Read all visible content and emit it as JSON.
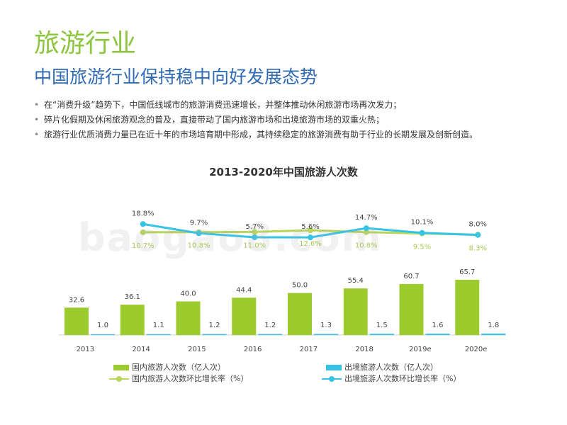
{
  "header": {
    "section_title": "旅游行业",
    "subtitle": "中国旅游行业保持稳中向好发展态势"
  },
  "bullets": [
    "在“消费升级”趋势下，中国低线城市的旅游消费迅速增长，并整体推动休闲旅游市场再次发力；",
    "碎片化假期及休闲旅游观念的普及，直接带动了国内旅游市场和出境旅游市场的双重火热；",
    "旅游行业优质消费力量已在近十年的市场培育期中形成，其持续稳定的旅游消费有助于行业的长期发展及创新创造。"
  ],
  "bullet_symbol": "•",
  "watermark": "baogao8.com",
  "colors": {
    "title_green": "#8cc63f",
    "subtitle_blue": "#2f6bb3",
    "domestic": "#9ccb2e",
    "outbound": "#35c3e6"
  },
  "chart_data": {
    "type": "bar",
    "title": "2013-2020年中国旅游人次数",
    "categories": [
      "2013",
      "2014",
      "2015",
      "2016",
      "2017",
      "2018",
      "2019e",
      "2020e"
    ],
    "series": [
      {
        "name": "国内旅游人次数（亿人次）",
        "kind": "bar",
        "color": "#9ccb2e",
        "values": [
          32.6,
          36.1,
          40.0,
          44.4,
          50.0,
          55.4,
          60.7,
          65.7
        ],
        "labels": [
          "32.6",
          "36.1",
          "40.0",
          "44.4",
          "50.0",
          "55.4",
          "60.7",
          "65.7"
        ]
      },
      {
        "name": "出境旅游人次数（亿人次）",
        "kind": "bar",
        "color": "#35c3e6",
        "values": [
          1.0,
          1.1,
          1.2,
          1.2,
          1.3,
          1.5,
          1.6,
          1.8
        ],
        "labels": [
          "1.0",
          "1.1",
          "1.2",
          "1.2",
          "1.3",
          "1.5",
          "1.6",
          "1.8"
        ]
      },
      {
        "name": "国内旅游人次数环比增长率（%）",
        "kind": "line",
        "color": "#b9d65a",
        "values": [
          null,
          10.7,
          10.8,
          11.0,
          12.6,
          10.8,
          9.5,
          8.3
        ],
        "labels": [
          null,
          "10.7%",
          "10.8%",
          "11.0%",
          "12.6%",
          "10.8%",
          "9.5%",
          "8.3%"
        ]
      },
      {
        "name": "出境旅游人次数环比增长率（%）",
        "kind": "line",
        "color": "#35c3e6",
        "values": [
          null,
          18.8,
          9.7,
          5.7,
          5.6,
          14.7,
          10.1,
          8.0
        ],
        "labels": [
          null,
          "18.8%",
          "9.7%",
          "5.7%",
          "5.6%",
          "14.7%",
          "10.1%",
          "8.0%"
        ]
      }
    ],
    "ylabel": "",
    "xlabel": "",
    "legend_position": "bottom",
    "grid": false
  }
}
